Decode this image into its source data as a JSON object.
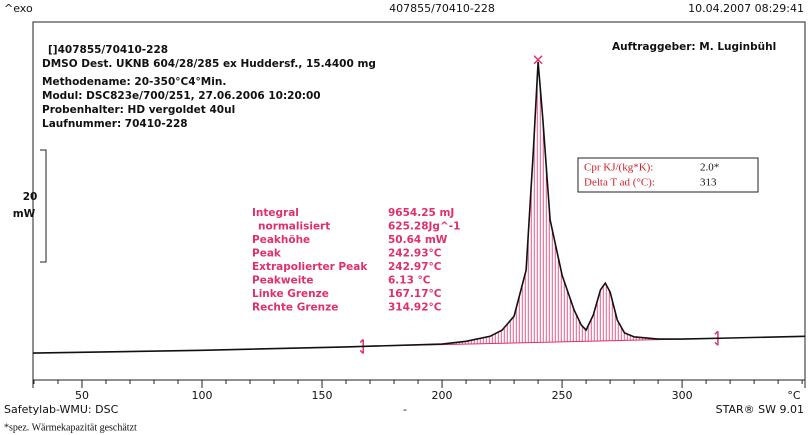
{
  "header": {
    "left": "^exo",
    "center": "407855/70410-228",
    "right": "10.04.2007 08:29:41"
  },
  "info": [
    "[]407855/70410-228",
    "DMSO Dest. UKNB 604/28/285 ex Huddersf., 15.4400 mg",
    "Methodename: 20-350°C4°Min.",
    "Modul: DSC823e/700/251, 27.06.2006 10:20:00",
    "Probenhalter: HD vergoldet 40ul",
    "Laufnummer: 70410-228"
  ],
  "client": "Auftraggeber: M. Luginbühl",
  "cpr_box": {
    "rows": [
      {
        "label": "Cpr KJ/(kg*K):",
        "value": "2.0*"
      },
      {
        "label": "Delta T ad (°C):",
        "value": "313"
      }
    ]
  },
  "chart_data": {
    "type": "line",
    "color": "#111111",
    "x": [
      29.6,
      100,
      160,
      200,
      210,
      220,
      225,
      230,
      235,
      238,
      240,
      242,
      245,
      250,
      255,
      258,
      260,
      263,
      266,
      268,
      270,
      273,
      276,
      280,
      290,
      300,
      320,
      351.2
    ],
    "values": [
      0,
      0.5,
      1.1,
      1.6,
      2.1,
      3.0,
      4.1,
      6.6,
      14.8,
      36,
      52,
      41.6,
      23.8,
      13.9,
      7.7,
      5,
      4.1,
      6.8,
      11.3,
      12.5,
      10.9,
      5.9,
      3.6,
      2.9,
      2.5,
      2.5,
      2.7,
      3.0
    ],
    "xlim": [
      29.6,
      351.2
    ],
    "ylim": [
      -4.8,
      59.1
    ],
    "xticks": [
      50,
      100,
      150,
      200,
      250,
      300
    ],
    "xminorticks": [
      30,
      40,
      60,
      70,
      80,
      90,
      110,
      120,
      130,
      140,
      160,
      170,
      180,
      190,
      210,
      220,
      230,
      240,
      260,
      270,
      280,
      290,
      310,
      320,
      330,
      340,
      350
    ],
    "x_label": "°C",
    "scale_bar": 20,
    "scale_unit": "mW",
    "results": [
      {
        "name": "Integral",
        "value": 9654.25,
        "label": "9654.25 mJ"
      },
      {
        "name": "normalisiert",
        "value": 625.28,
        "label": "625.28Jg^-1"
      },
      {
        "name": "Peakhöhe",
        "value": 50.64,
        "label": "50.64 mW"
      },
      {
        "name": "Peak",
        "value": 242.93,
        "label": "242.93°C"
      },
      {
        "name": "Extrapolierter Peak",
        "value": 242.97,
        "label": "242.97°C"
      },
      {
        "name": "Peakweite",
        "value": 6.13,
        "label": "6.13 °C"
      },
      {
        "name": "Linke Grenze",
        "value": 167.17,
        "label": "167.17°C"
      },
      {
        "name": "Rechte Grenze",
        "value": 314.92,
        "label": "314.92°C"
      }
    ]
  },
  "footer": {
    "left": "Safetylab-WMU: DSC",
    "center": "-",
    "right": "STAR® SW 9.01",
    "note": "*spez. Wärmekapazität geschätzt"
  }
}
